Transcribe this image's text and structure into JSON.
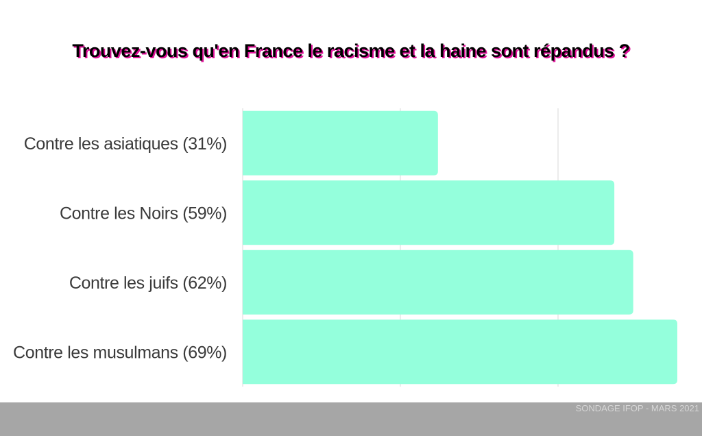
{
  "chart_data": {
    "type": "bar",
    "orientation": "horizontal",
    "title": "Trouvez-vous qu'en France le racisme et la haine sont répandus ?",
    "categories": [
      "Contre les asiatiques (31%)",
      "Contre les Noirs (59%)",
      "Contre les juifs (62%)",
      "Contre les musulmans (69%)"
    ],
    "values": [
      31,
      59,
      62,
      69
    ],
    "unit": "%",
    "xlim": [
      0,
      69
    ],
    "grid": true,
    "bar_color": "#94ffdc"
  },
  "footer": {
    "source": "SONDAGE IFOP - MARS 2021"
  },
  "colors": {
    "title_shadow": "#e0109a",
    "footer_band": "#a6a6a6"
  }
}
